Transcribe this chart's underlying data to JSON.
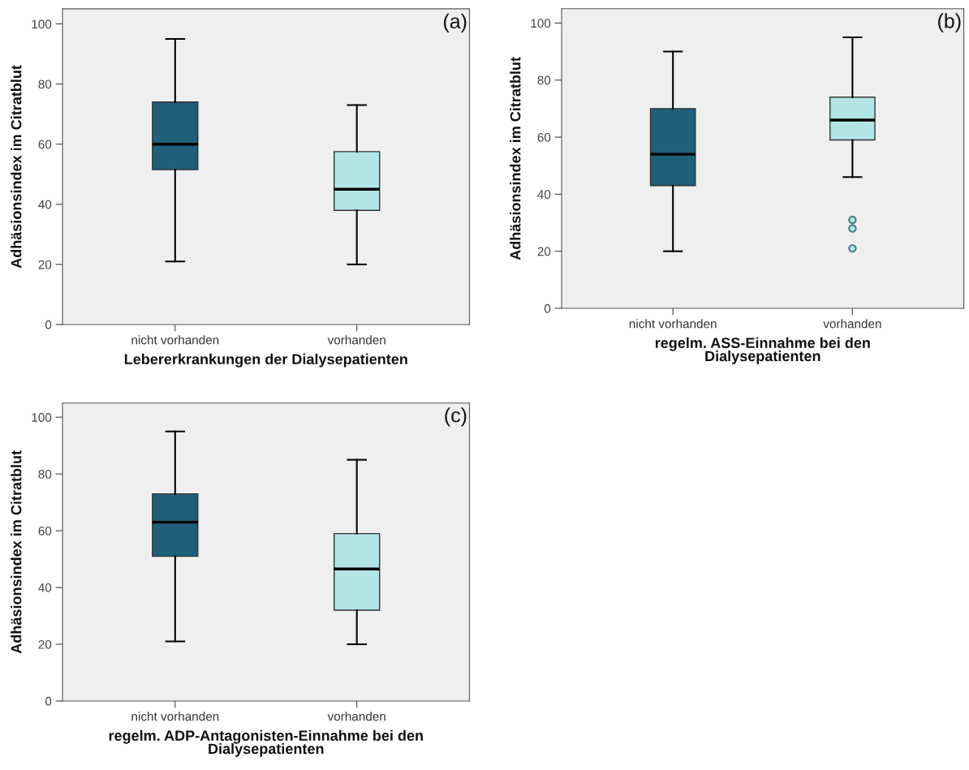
{
  "chart_data": [
    {
      "type": "box",
      "annotations": [
        "(a)"
      ],
      "xlabel": "Lebererkrankungen der Dialysepatienten",
      "ylabel": "Adhäsionsindex im Citratblut",
      "categories": [
        "nicht vorhanden",
        "vorhanden"
      ],
      "colors": [
        "#1f5f78",
        "#b3e5e6"
      ],
      "boxes": [
        {
          "low": 21,
          "q1": 51.5,
          "median": 60,
          "q3": 74,
          "high": 95
        },
        {
          "low": 20,
          "q1": 38,
          "median": 45,
          "q3": 57.5,
          "high": 73
        }
      ],
      "ylim": [
        0,
        105
      ],
      "yticks": [
        0,
        20,
        40,
        60,
        80,
        100
      ],
      "grid": false
    },
    {
      "type": "box",
      "annotations": [
        "(b)"
      ],
      "xlabel": "regelm. ASS-Einnahme bei den\nDialysepatienten",
      "ylabel": "Adhäsionsindex im Citratblut",
      "categories": [
        "nicht vorhanden",
        "vorhanden"
      ],
      "colors": [
        "#1f5f78",
        "#b3e5e6"
      ],
      "boxes": [
        {
          "low": 20,
          "q1": 43,
          "median": 54,
          "q3": 70,
          "high": 90
        },
        {
          "low": 46,
          "q1": 59,
          "median": 66,
          "q3": 74,
          "high": 95,
          "outliers": [
            31,
            28,
            21
          ]
        }
      ],
      "ylim": [
        0,
        105
      ],
      "yticks": [
        0,
        20,
        40,
        60,
        80,
        100
      ],
      "grid": false
    },
    {
      "type": "box",
      "annotations": [
        "(c)"
      ],
      "xlabel": "regelm. ADP-Antagonisten-Einnahme bei den\nDialysepatienten",
      "ylabel": "Adhäsionsindex im Citratblut",
      "categories": [
        "nicht vorhanden",
        "vorhanden"
      ],
      "colors": [
        "#1f5f78",
        "#b3e5e6"
      ],
      "boxes": [
        {
          "low": 21,
          "q1": 51,
          "median": 63,
          "q3": 73,
          "high": 95
        },
        {
          "low": 20,
          "q1": 32,
          "median": 46.5,
          "q3": 59,
          "high": 85
        }
      ],
      "ylim": [
        0,
        105
      ],
      "yticks": [
        0,
        20,
        40,
        60,
        80,
        100
      ],
      "grid": false
    }
  ]
}
